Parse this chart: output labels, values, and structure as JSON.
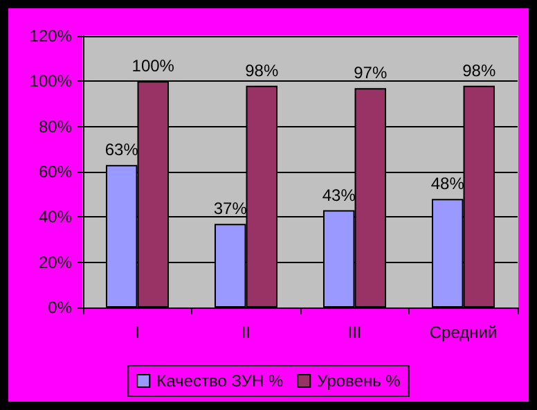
{
  "chart_data": {
    "type": "bar",
    "categories": [
      "I",
      "II",
      "III",
      "Средний"
    ],
    "series": [
      {
        "name": "Качество ЗУН %",
        "color": "#9999ff",
        "values": [
          63,
          37,
          43,
          48
        ],
        "value_labels": [
          "63%",
          "37%",
          "43%",
          "48%"
        ]
      },
      {
        "name": "Уровень %",
        "color": "#993366",
        "values": [
          100,
          98,
          97,
          98
        ],
        "value_labels": [
          "100%",
          "98%",
          "97%",
          "98%"
        ]
      }
    ],
    "ylim": [
      0,
      120
    ],
    "yticks": [
      {
        "value": 0,
        "label": "0%"
      },
      {
        "value": 20,
        "label": "20%"
      },
      {
        "value": 40,
        "label": "40%"
      },
      {
        "value": 60,
        "label": "60%"
      },
      {
        "value": 80,
        "label": "80%"
      },
      {
        "value": 100,
        "label": "100%"
      },
      {
        "value": 120,
        "label": "120%"
      }
    ],
    "grid": "y",
    "legend": "bottom"
  }
}
